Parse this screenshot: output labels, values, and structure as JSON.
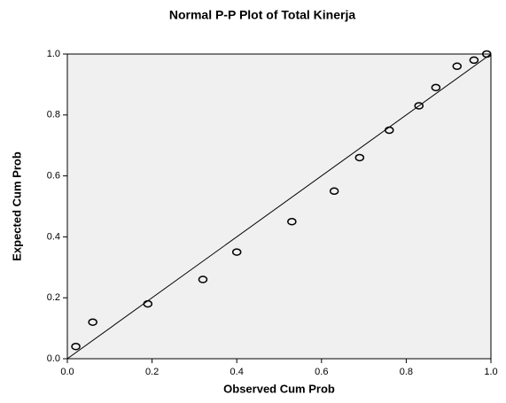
{
  "chart_data": {
    "type": "scatter",
    "title": "Normal P-P Plot of Total Kinerja",
    "x_label": "Observed Cum Prob",
    "y_label": "Expected Cum Prob",
    "color": "#000000",
    "x": [
      0.02,
      0.06,
      0.19,
      0.32,
      0.4,
      0.53,
      0.63,
      0.69,
      0.76,
      0.83,
      0.87,
      0.92,
      0.96,
      0.99
    ],
    "values": [
      0.04,
      0.12,
      0.18,
      0.26,
      0.35,
      0.45,
      0.55,
      0.66,
      0.75,
      0.83,
      0.89,
      0.96,
      0.98,
      1.0
    ],
    "xlim": [
      0,
      1
    ],
    "ylim": [
      0,
      1
    ],
    "xticks": [
      {
        "value": 0,
        "label": "0.0"
      },
      0.2,
      0.4,
      0.6,
      0.8,
      {
        "value": 1,
        "label": "1.0"
      }
    ],
    "yticks": [
      {
        "value": 0,
        "label": "0.0"
      },
      0.2,
      0.4,
      0.6,
      0.8,
      {
        "value": 1,
        "label": "1.0"
      }
    ]
  }
}
